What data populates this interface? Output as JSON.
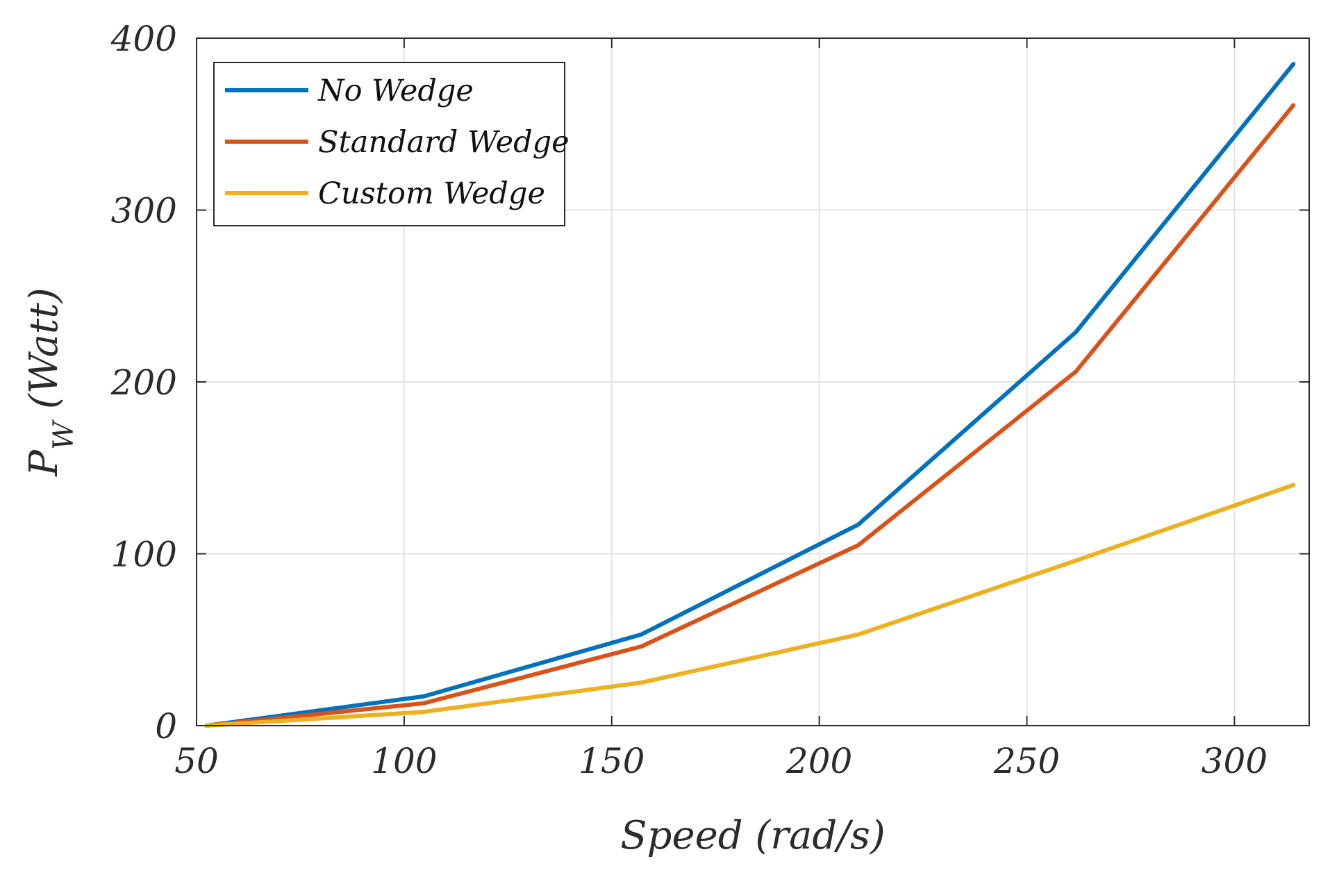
{
  "chart_data": {
    "type": "line",
    "title": "",
    "xlabel": "Speed (rad/s)",
    "ylabel_main": "P",
    "ylabel_sub": "W",
    "ylabel_unit": "(Watt)",
    "xlim": [
      50,
      318
    ],
    "ylim": [
      0,
      400
    ],
    "xticks": [
      50,
      100,
      150,
      200,
      250,
      300
    ],
    "yticks": [
      0,
      100,
      200,
      300,
      400
    ],
    "xtick_labels": [
      "50",
      "100",
      "150",
      "200",
      "250",
      "300"
    ],
    "ytick_labels": [
      "0",
      "100",
      "200",
      "300",
      "400"
    ],
    "grid": true,
    "legend_position": "top-left",
    "x": [
      52.4,
      104.7,
      157.1,
      209.4,
      261.8,
      314.2
    ],
    "series": [
      {
        "name": "No Wedge",
        "color": "#0072BD",
        "values": [
          0,
          17,
          53,
          117,
          229,
          385
        ]
      },
      {
        "name": "Standard Wedge",
        "color": "#D95319",
        "values": [
          0,
          13,
          46,
          105,
          206,
          361
        ]
      },
      {
        "name": "Custom Wedge",
        "color": "#EDB120",
        "values": [
          0,
          8,
          25,
          53,
          96,
          140
        ]
      }
    ]
  }
}
